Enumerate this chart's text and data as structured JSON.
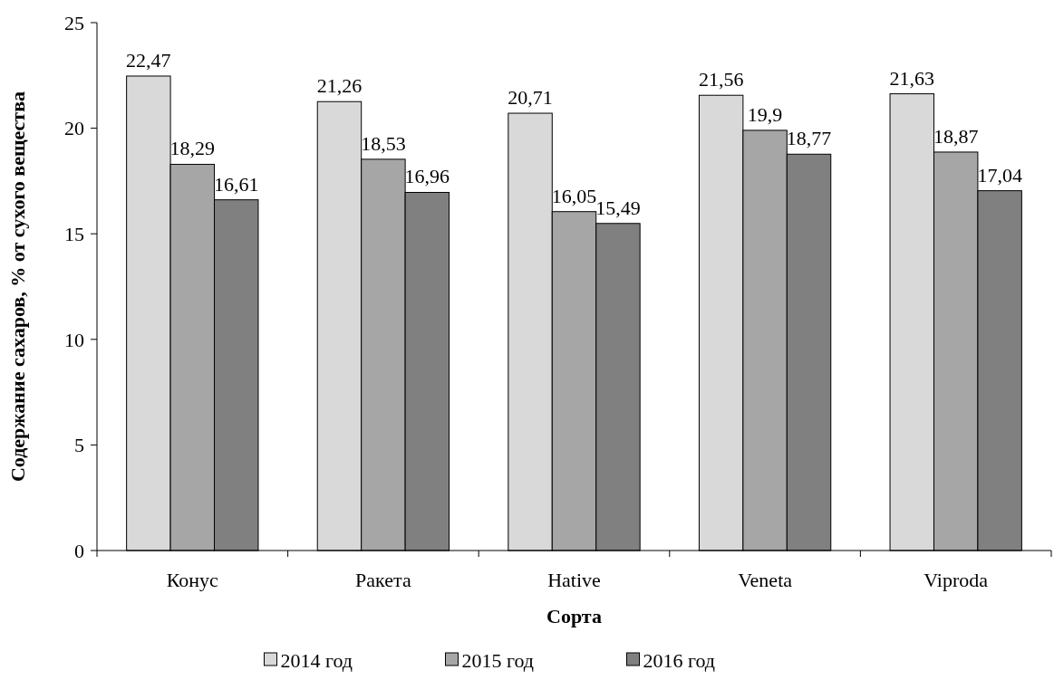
{
  "chart_data": {
    "type": "bar",
    "xlabel": "Сорта",
    "ylabel": "Содержание сахаров, % от сухого вещества",
    "categories": [
      "Конус",
      "Ракета",
      "Hative",
      "Veneta",
      "Viproda"
    ],
    "series": [
      {
        "name": "2014 год",
        "color": "#d9d9d9",
        "values": [
          22.47,
          21.26,
          20.71,
          21.56,
          21.63
        ]
      },
      {
        "name": "2015 год",
        "color": "#a6a6a6",
        "values": [
          18.29,
          18.53,
          16.05,
          19.9,
          18.87
        ]
      },
      {
        "name": "2016 год",
        "color": "#808080",
        "values": [
          16.61,
          16.96,
          15.49,
          18.77,
          17.04
        ]
      }
    ],
    "ylim": [
      0,
      25
    ],
    "yticks": [
      0,
      5,
      10,
      15,
      20,
      25
    ],
    "grid": false,
    "legend": "bottom",
    "value_labels": [
      [
        "22,47",
        "21,26",
        "20,71",
        "21,56",
        "21,63"
      ],
      [
        "18,29",
        "18,53",
        "16,05",
        "19,9",
        "18,87"
      ],
      [
        "16,61",
        "16,96",
        "15,49",
        "18,77",
        "17,04"
      ]
    ]
  }
}
